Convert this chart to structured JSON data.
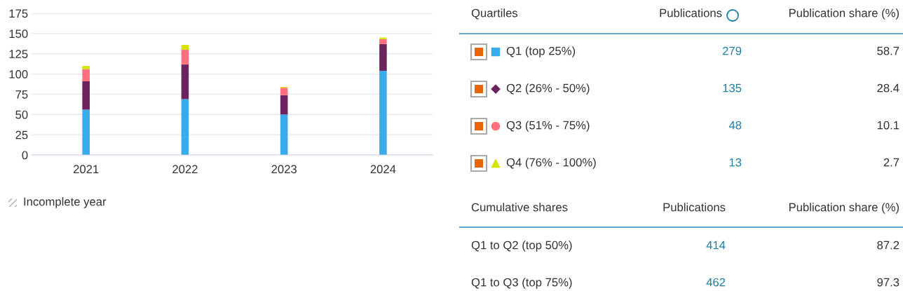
{
  "chart_data": [
    {
      "type": "bar",
      "stacked": true,
      "categories": [
        "2021",
        "2022",
        "2023",
        "2024"
      ],
      "series": [
        {
          "name": "Q1 (top 25%)",
          "color": "#3aabea",
          "values": [
            56,
            69,
            50,
            104
          ]
        },
        {
          "name": "Q2 (26% - 50%)",
          "color": "#6b2460",
          "values": [
            35,
            43,
            24,
            33
          ]
        },
        {
          "name": "Q3 (51% - 75%)",
          "color": "#ff6f7d",
          "values": [
            15,
            18,
            9,
            6
          ]
        },
        {
          "name": "Q4 (76% - 100%)",
          "color": "#d4e600",
          "values": [
            4,
            6,
            1,
            2
          ]
        }
      ],
      "ylim": [
        0,
        175
      ],
      "yticks": [
        0,
        25,
        50,
        75,
        100,
        125,
        150,
        175
      ],
      "grid": "y",
      "legend": "right",
      "annotations": [
        "Incomplete year"
      ]
    },
    {
      "type": "other",
      "annotations": [
        "Quartiles",
        "Publications",
        "Publication share (%)",
        "279",
        "58.7",
        "135",
        "28.4",
        "48",
        "10.1",
        "13",
        "2.7",
        "Cumulative shares",
        "Publications",
        "Publication share (%)",
        "Q1 to Q2 (top 50%)",
        "414",
        "87.2",
        "Q1 to Q3 (top 75%)",
        "462",
        "97.3"
      ]
    }
  ]
}
